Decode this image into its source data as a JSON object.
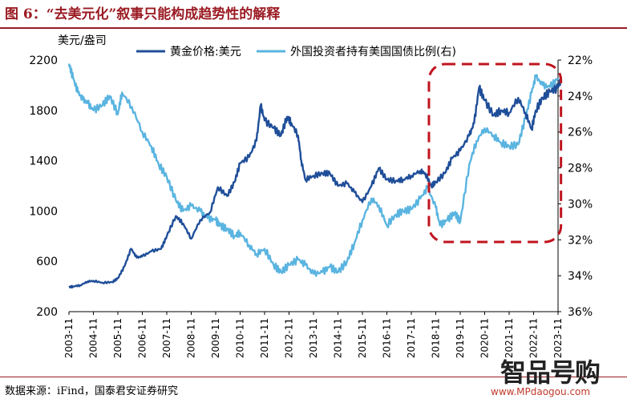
{
  "title": "图 6：“去美元化”叙事只能构成趋势性的解释",
  "source": "数据来源：iFind，国泰君安证券研究",
  "watermark": {
    "text": "智品号购",
    "url": "www.MPdaogou.com"
  },
  "chart_data": {
    "type": "line",
    "left_axis": {
      "label": "美元/盎司",
      "min": 200,
      "max": 2200,
      "ticks": [
        "2200",
        "1800",
        "1400",
        "1000",
        "600",
        "200"
      ]
    },
    "right_axis": {
      "label": "",
      "reversed": true,
      "min": 22,
      "max": 36,
      "ticks": [
        "22%",
        "24%",
        "26%",
        "28%",
        "30%",
        "32%",
        "34%",
        "36%"
      ]
    },
    "x_labels": [
      "2003-11",
      "2004-11",
      "2005-11",
      "2006-11",
      "2007-11",
      "2008-11",
      "2009-11",
      "2010-11",
      "2011-11",
      "2012-11",
      "2013-11",
      "2014-11",
      "2015-11",
      "2016-11",
      "2017-11",
      "2018-11",
      "2019-11",
      "2020-11",
      "2021-11",
      "2022-11",
      "2023-11"
    ],
    "series": [
      {
        "name": "黄金价格:美元",
        "axis": "left",
        "color": "#1f4e99",
        "x": [
          2003.83,
          2004.0,
          2004.3,
          2004.6,
          2004.83,
          2005.2,
          2005.6,
          2005.83,
          2006.1,
          2006.37,
          2006.6,
          2006.83,
          2007.2,
          2007.6,
          2007.83,
          2008.2,
          2008.5,
          2008.83,
          2009.2,
          2009.6,
          2009.92,
          2010.3,
          2010.6,
          2010.83,
          2011.2,
          2011.5,
          2011.67,
          2011.83,
          2012.2,
          2012.5,
          2012.75,
          2012.92,
          2013.2,
          2013.33,
          2013.5,
          2013.83,
          2014.2,
          2014.5,
          2014.83,
          2015.2,
          2015.5,
          2015.83,
          2016.2,
          2016.5,
          2016.83,
          2017.2,
          2017.5,
          2017.83,
          2018.2,
          2018.4,
          2018.65,
          2018.83,
          2019.2,
          2019.5,
          2019.83,
          2020.2,
          2020.4,
          2020.6,
          2020.83,
          2021.2,
          2021.5,
          2021.83,
          2022.2,
          2022.5,
          2022.75,
          2022.92,
          2023.2,
          2023.5,
          2023.83,
          2023.95
        ],
        "y": [
          395,
          400,
          410,
          440,
          445,
          430,
          435,
          465,
          560,
          700,
          630,
          640,
          680,
          700,
          800,
          960,
          900,
          780,
          930,
          990,
          1190,
          1120,
          1230,
          1380,
          1430,
          1560,
          1840,
          1720,
          1660,
          1600,
          1750,
          1700,
          1600,
          1400,
          1250,
          1280,
          1300,
          1300,
          1200,
          1220,
          1150,
          1070,
          1200,
          1340,
          1250,
          1240,
          1250,
          1280,
          1320,
          1300,
          1200,
          1230,
          1300,
          1420,
          1480,
          1600,
          1700,
          1980,
          1880,
          1760,
          1800,
          1780,
          1900,
          1780,
          1650,
          1800,
          1900,
          1950,
          1980,
          2050
        ]
      },
      {
        "name": "外国投资者持有美国国债比例(右)",
        "axis": "right",
        "color": "#5ab4e0",
        "x": [
          2003.83,
          2004.0,
          2004.2,
          2004.4,
          2004.6,
          2004.83,
          2005.2,
          2005.5,
          2005.83,
          2006.0,
          2006.4,
          2006.83,
          2007.2,
          2007.5,
          2007.83,
          2008.2,
          2008.5,
          2008.83,
          2009.2,
          2009.5,
          2009.83,
          2010.0,
          2010.3,
          2010.6,
          2010.83,
          2011.2,
          2011.5,
          2011.83,
          2012.2,
          2012.5,
          2012.83,
          2013.2,
          2013.5,
          2013.83,
          2014.2,
          2014.5,
          2014.83,
          2015.2,
          2015.5,
          2015.83,
          2016.2,
          2016.5,
          2016.83,
          2017.2,
          2017.5,
          2017.83,
          2018.2,
          2018.5,
          2018.83,
          2019.0,
          2019.3,
          2019.6,
          2019.83,
          2020.2,
          2020.5,
          2020.83,
          2021.2,
          2021.5,
          2021.83,
          2022.2,
          2022.5,
          2022.75,
          2022.92,
          2023.2,
          2023.5,
          2023.83
        ],
        "y": [
          22.2,
          23.0,
          23.8,
          24.2,
          24.4,
          24.8,
          24.5,
          24.0,
          25.0,
          23.8,
          24.6,
          26.0,
          26.8,
          27.8,
          28.5,
          29.8,
          30.4,
          30.1,
          30.4,
          30.8,
          30.9,
          31.2,
          31.4,
          31.8,
          31.6,
          32.3,
          32.8,
          32.5,
          33.4,
          33.8,
          33.4,
          33.1,
          33.4,
          33.9,
          33.8,
          33.5,
          33.8,
          33.2,
          32.2,
          30.9,
          29.7,
          30.1,
          31.2,
          30.6,
          30.4,
          30.3,
          29.7,
          29.1,
          30.2,
          31.2,
          30.9,
          30.5,
          31.0,
          27.8,
          26.5,
          25.8,
          26.2,
          26.6,
          26.8,
          26.7,
          25.2,
          23.8,
          22.9,
          23.4,
          23.5,
          23.0
        ]
      }
    ],
    "highlight": {
      "x_from": 2018.55,
      "x_to": 2023.95
    }
  }
}
